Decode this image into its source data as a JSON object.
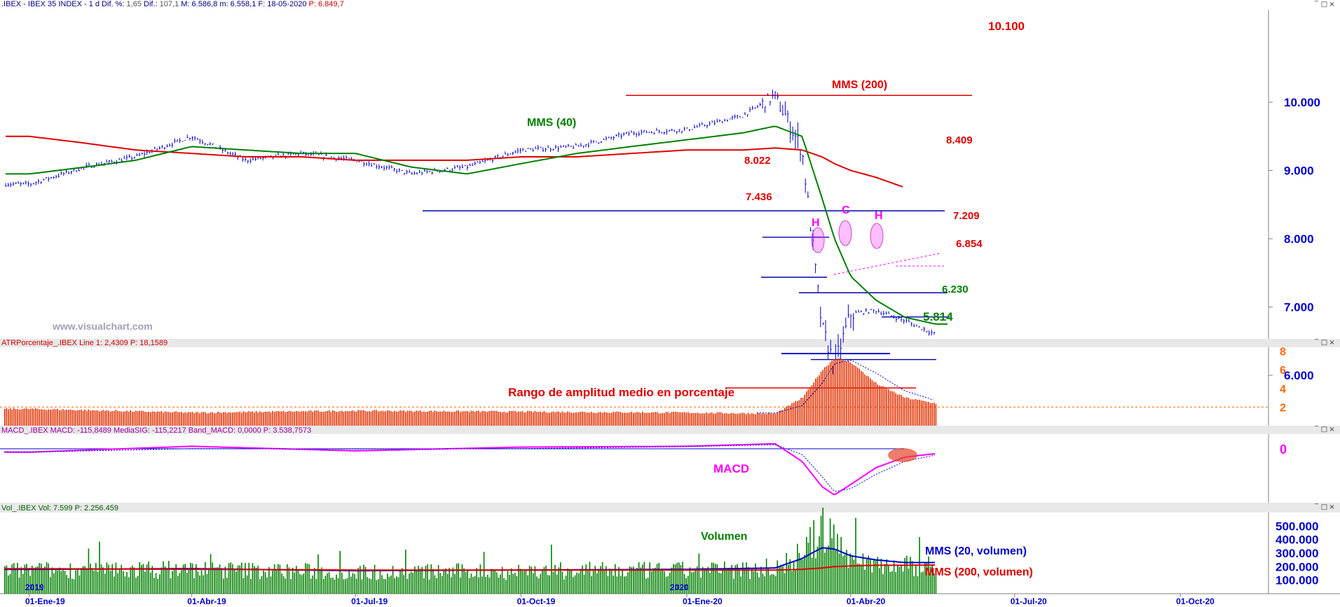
{
  "panels": {
    "price": {
      "header": {
        "symbol": ".IBEX - IBEX 35 INDEX - ",
        "period": "1 d",
        "dif_pct_label": "Dif. %:",
        "dif_pct": "1,65",
        "dif_label": "Dif.:",
        "dif": "107,1",
        "max_label": "M:",
        "max": "6.586,8",
        "min_label": "m:",
        "min": "6.558,1",
        "date": "F: 18-05-2020",
        "last": "P: 6.849,7"
      },
      "watermark": "www.visualchart.com",
      "y_ticks": [
        "10.000",
        "9.000",
        "8.000",
        "7.000",
        "6.000"
      ],
      "labels": {
        "level_10100": "10.100",
        "mms200": "MMS (200)",
        "mms40": "MMS (40)",
        "level_8409": "8.409",
        "level_8022": "8.022",
        "level_7436": "7.436",
        "level_7209": "7.209",
        "level_6854": "6.854",
        "level_6230": "6.230",
        "level_5814": "5.814",
        "pattern_h1": "H",
        "pattern_c": "C",
        "pattern_h2": "H"
      }
    },
    "atr": {
      "header": "ATRPorcentaje_.IBEX Line 1: 2,4309  P: 18,1589",
      "y_ticks": [
        "8",
        "6",
        "4",
        "2"
      ],
      "annotation": "Rango de amplitud medio en porcentaje"
    },
    "macd": {
      "header": "MACD_.IBEX MACD: -115,8489  MediaSIG: -115,2217  Band_MACD: 0,0000  P: 3.538,7573",
      "y_ticks": [
        "0"
      ],
      "annotation": "MACD"
    },
    "volume": {
      "header": "Vol_.IBEX Vol: 7.599  P: 2.256.459",
      "y_ticks": [
        "500.000",
        "400.000",
        "300.000",
        "200.000",
        "100.000"
      ],
      "annotation": "Volumen",
      "legend_mms20": "MMS (20, volumen)",
      "legend_mms200": "MMS (200, volumen)",
      "year_labels": [
        "2019",
        "2020"
      ]
    }
  },
  "x_axis": {
    "ticks": [
      "01-Ene-19",
      "01-Abr-19",
      "01-Jul-19",
      "01-Oct-19",
      "01-Ene-20",
      "01-Abr-20",
      "01-Jul-20",
      "01-Oct-20"
    ]
  },
  "window_buttons": [
    "‾",
    "□",
    "×"
  ],
  "colors": {
    "price_bars": "#0000cc",
    "mms200": "#e00000",
    "mms40": "#008000",
    "atr_bars": "#e03000",
    "macd_line": "#ff00ff",
    "volume_bars": "#008000",
    "axis_text": "#0000cc",
    "support": "#008000",
    "resistance": "#e00000",
    "pattern": "#ff00ff"
  },
  "chart_data": [
    {
      "type": "line",
      "title": "IBEX 35 INDEX",
      "x": [
        "2019-01-01",
        "2019-02-01",
        "2019-03-01",
        "2019-04-01",
        "2019-05-01",
        "2019-06-01",
        "2019-07-01",
        "2019-08-01",
        "2019-09-01",
        "2019-10-01",
        "2019-11-01",
        "2019-12-01",
        "2020-01-01",
        "2020-02-01",
        "2020-02-19",
        "2020-03-05",
        "2020-03-16",
        "2020-03-23",
        "2020-04-01",
        "2020-04-15",
        "2020-05-01",
        "2020-05-18"
      ],
      "series": [
        {
          "name": "",
          "values": [
            8800,
            9050,
            9200,
            9500,
            9150,
            9250,
            9150,
            8950,
            9050,
            9300,
            9350,
            9550,
            9600,
            9800,
            10100,
            9300,
            6700,
            6150,
            6900,
            6950,
            6800,
            6600
          ]
        },
        {
          "name": "MMS (40)",
          "values": [
            8950,
            9050,
            9150,
            9350,
            9300,
            9250,
            9250,
            9050,
            8950,
            9100,
            9250,
            9350,
            9450,
            9550,
            9650,
            9500,
            8600,
            8000,
            7450,
            7100,
            6850,
            6750
          ]
        },
        {
          "name": "MMS (200)",
          "values": [
            9500,
            9400,
            9300,
            9250,
            9200,
            9200,
            9150,
            9150,
            9150,
            9200,
            9200,
            9250,
            9300,
            9300,
            9330,
            9300,
            9200,
            9100,
            9000,
            8900,
            8750,
            8650
          ]
        }
      ],
      "levels": [
        10100,
        8409,
        8022,
        7436,
        7209,
        6854,
        6230,
        5814
      ],
      "ylim": [
        5600,
        10200
      ],
      "xlabel": "",
      "ylabel": ""
    },
    {
      "type": "bar",
      "title": "ATRPorcentaje_.IBEX",
      "x": [
        "2019-01-01",
        "2019-04-01",
        "2019-07-01",
        "2019-10-01",
        "2020-01-01",
        "2020-02-19",
        "2020-03-05",
        "2020-03-16",
        "2020-03-23",
        "2020-04-01",
        "2020-04-15",
        "2020-05-01",
        "2020-05-18"
      ],
      "values": [
        1.8,
        1.4,
        1.6,
        1.5,
        1.4,
        1.3,
        3,
        6,
        7.3,
        6.8,
        4.5,
        3,
        2.4
      ],
      "ylim": [
        0,
        8
      ],
      "reference_level": 2
    },
    {
      "type": "line",
      "title": "MACD_.IBEX",
      "x": [
        "2019-01-01",
        "2019-04-01",
        "2019-07-01",
        "2019-10-01",
        "2020-01-01",
        "2020-02-19",
        "2020-03-05",
        "2020-03-16",
        "2020-03-23",
        "2020-04-01",
        "2020-04-15",
        "2020-05-01",
        "2020-05-18"
      ],
      "series": [
        {
          "name": "MACD",
          "values": [
            -80,
            60,
            -50,
            40,
            60,
            120,
            -300,
            -900,
            -1100,
            -850,
            -450,
            -200,
            -116
          ]
        }
      ],
      "ylim": [
        -1200,
        200
      ]
    },
    {
      "type": "bar",
      "title": "Vol_.IBEX",
      "x": [
        "2019-01-01",
        "2019-04-01",
        "2019-07-01",
        "2019-10-01",
        "2020-01-01",
        "2020-02-19",
        "2020-03-05",
        "2020-03-16",
        "2020-03-23",
        "2020-04-01",
        "2020-04-15",
        "2020-05-01",
        "2020-05-18"
      ],
      "values": [
        190000,
        200000,
        175000,
        185000,
        190000,
        200000,
        330000,
        520000,
        440000,
        300000,
        250000,
        230000,
        240000
      ],
      "series": [
        {
          "name": "MMS (20, volumen)",
          "values": [
            180000,
            185000,
            170000,
            175000,
            180000,
            190000,
            260000,
            340000,
            330000,
            280000,
            250000,
            230000,
            230000
          ]
        },
        {
          "name": "MMS (200, volumen)",
          "values": [
            185000,
            180000,
            175000,
            175000,
            175000,
            175000,
            180000,
            190000,
            200000,
            205000,
            210000,
            210000,
            212000
          ]
        }
      ],
      "ylim": [
        0,
        600000
      ]
    }
  ]
}
